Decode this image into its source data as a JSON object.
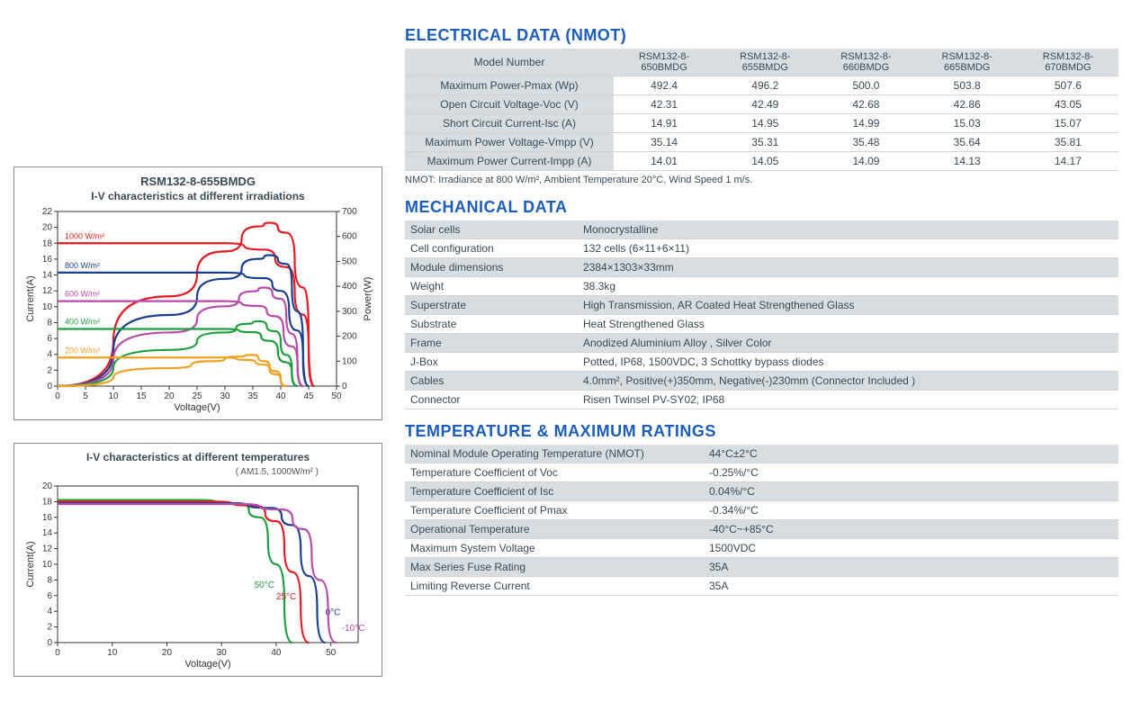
{
  "chart1": {
    "title": "RSM132-8-655BMDG",
    "subtitle": "I-V characteristics at different irradiations",
    "xlabel": "Voltage(V)",
    "ylabel_left": "Current(A)",
    "ylabel_right": "Power(W)",
    "xlim": [
      0,
      50
    ],
    "xtick_step": 5,
    "ylim_left": [
      0,
      22
    ],
    "ytick_left_step": 2,
    "ylim_right": [
      0,
      700
    ],
    "ytick_right_step": 100,
    "line_width": 2.2,
    "series": [
      {
        "label": "1000 W/m²",
        "color": "#e31b23",
        "iv": [
          [
            0,
            18
          ],
          [
            30,
            18
          ],
          [
            37,
            17.2
          ],
          [
            41,
            15
          ],
          [
            44,
            9
          ],
          [
            46,
            0
          ]
        ],
        "pv": [
          [
            0,
            0
          ],
          [
            20,
            360
          ],
          [
            30,
            540
          ],
          [
            36,
            640
          ],
          [
            38,
            655
          ],
          [
            41,
            615
          ],
          [
            44,
            395
          ],
          [
            46,
            0
          ]
        ]
      },
      {
        "label": "800 W/m²",
        "color": "#1b3f8f",
        "iv": [
          [
            0,
            14.3
          ],
          [
            30,
            14.3
          ],
          [
            37,
            13.6
          ],
          [
            40,
            12
          ],
          [
            43,
            7
          ],
          [
            45,
            0
          ]
        ],
        "pv": [
          [
            0,
            0
          ],
          [
            20,
            285
          ],
          [
            30,
            430
          ],
          [
            36,
            510
          ],
          [
            38,
            525
          ],
          [
            41,
            490
          ],
          [
            43,
            300
          ],
          [
            45,
            0
          ]
        ]
      },
      {
        "label": "600 W/m²",
        "color": "#b84aa8",
        "iv": [
          [
            0,
            10.7
          ],
          [
            30,
            10.7
          ],
          [
            36,
            10.1
          ],
          [
            39,
            8.8
          ],
          [
            42,
            5
          ],
          [
            44,
            0
          ]
        ],
        "pv": [
          [
            0,
            0
          ],
          [
            20,
            215
          ],
          [
            30,
            320
          ],
          [
            35,
            380
          ],
          [
            37,
            395
          ],
          [
            40,
            350
          ],
          [
            42,
            210
          ],
          [
            44,
            0
          ]
        ]
      },
      {
        "label": "400 W/m²",
        "color": "#1f9e3f",
        "iv": [
          [
            0,
            7.2
          ],
          [
            30,
            7.2
          ],
          [
            35,
            6.8
          ],
          [
            38,
            5.7
          ],
          [
            41,
            3
          ],
          [
            43,
            0
          ]
        ],
        "pv": [
          [
            0,
            0
          ],
          [
            20,
            145
          ],
          [
            30,
            215
          ],
          [
            34,
            250
          ],
          [
            36,
            260
          ],
          [
            39,
            220
          ],
          [
            41,
            125
          ],
          [
            43,
            0
          ]
        ]
      },
      {
        "label": "200 W/m²",
        "color": "#f0a11f",
        "iv": [
          [
            0,
            3.6
          ],
          [
            30,
            3.6
          ],
          [
            34,
            3.3
          ],
          [
            37,
            2.7
          ],
          [
            39,
            1.5
          ],
          [
            41,
            0
          ]
        ],
        "pv": [
          [
            0,
            0
          ],
          [
            20,
            72
          ],
          [
            28,
            100
          ],
          [
            32,
            118
          ],
          [
            35,
            125
          ],
          [
            37,
            100
          ],
          [
            39,
            60
          ],
          [
            41,
            0
          ]
        ]
      }
    ]
  },
  "chart2": {
    "title": "I-V characteristics at different temperatures",
    "note": "( AM1.5,  1000W/m² )",
    "xlabel": "Voltage(V)",
    "ylabel": "Current(A)",
    "xlim": [
      0,
      55
    ],
    "xtick_step": 10,
    "ylim": [
      0,
      20
    ],
    "ytick_step": 2,
    "line_width": 2.2,
    "series": [
      {
        "label": "50°C",
        "color": "#1f9e3f",
        "pts": [
          [
            0,
            18.2
          ],
          [
            25,
            18.2
          ],
          [
            33,
            17.8
          ],
          [
            37,
            16
          ],
          [
            40,
            10
          ],
          [
            43,
            0
          ]
        ]
      },
      {
        "label": "25°C",
        "color": "#e31b23",
        "pts": [
          [
            0,
            18.0
          ],
          [
            28,
            18.0
          ],
          [
            36,
            17.5
          ],
          [
            40,
            15.5
          ],
          [
            43,
            9
          ],
          [
            46,
            0
          ]
        ]
      },
      {
        "label": "0°C",
        "color": "#1b3f8f",
        "pts": [
          [
            0,
            17.8
          ],
          [
            31,
            17.8
          ],
          [
            39,
            17.2
          ],
          [
            43,
            15
          ],
          [
            46,
            8.5
          ],
          [
            49,
            0
          ]
        ]
      },
      {
        "label": "-10°C",
        "color": "#b84aa8",
        "pts": [
          [
            0,
            17.7
          ],
          [
            33,
            17.7
          ],
          [
            41,
            17
          ],
          [
            45,
            14.5
          ],
          [
            48,
            8
          ],
          [
            51,
            0
          ]
        ]
      }
    ]
  },
  "electrical": {
    "heading": "ELECTRICAL DATA (NMOT)",
    "columns": [
      "Model Number",
      "RSM132-8-650BMDG",
      "RSM132-8-655BMDG",
      "RSM132-8-660BMDG",
      "RSM132-8-665BMDG",
      "RSM132-8-670BMDG"
    ],
    "rows": [
      [
        "Maximum Power-Pmax (Wp)",
        "492.4",
        "496.2",
        "500.0",
        "503.8",
        "507.6"
      ],
      [
        "Open Circuit Voltage-Voc (V)",
        "42.31",
        "42.49",
        "42.68",
        "42.86",
        "43.05"
      ],
      [
        "Short Circuit Current-Isc (A)",
        "14.91",
        "14.95",
        "14.99",
        "15.03",
        "15.07"
      ],
      [
        "Maximum Power Voltage-Vmpp (V)",
        "35.14",
        "35.31",
        "35.48",
        "35.64",
        "35.81"
      ],
      [
        "Maximum Power Current-Impp (A)",
        "14.01",
        "14.05",
        "14.09",
        "14.13",
        "14.17"
      ]
    ],
    "note": "NMOT: Irradiance at 800 W/m², Ambient Temperature 20°C, Wind Speed 1 m/s."
  },
  "mechanical": {
    "heading": "MECHANICAL DATA",
    "rows": [
      [
        "Solar cells",
        "Monocrystalline"
      ],
      [
        "Cell configuration",
        "132 cells (6×11+6×11)"
      ],
      [
        "Module dimensions",
        "2384×1303×33mm"
      ],
      [
        "Weight",
        "38.3kg"
      ],
      [
        "Superstrate",
        "High Transmission, AR Coated Heat Strengthened Glass"
      ],
      [
        "Substrate",
        "Heat Strengthened Glass"
      ],
      [
        "Frame",
        "Anodized Aluminium Alloy , Silver Color"
      ],
      [
        "J-Box",
        "Potted, IP68, 1500VDC, 3 Schottky bypass diodes"
      ],
      [
        "Cables",
        "4.0mm², Positive(+)350mm, Negative(-)230mm (Connector Included )"
      ],
      [
        "Connector",
        "Risen Twinsel PV-SY02, IP68"
      ]
    ]
  },
  "temperature": {
    "heading": "TEMPERATURE & MAXIMUM RATINGS",
    "rows": [
      [
        "Nominal Module Operating Temperature (NMOT)",
        "44°C±2°C"
      ],
      [
        "Temperature Coefficient of Voc",
        "-0.25%/°C"
      ],
      [
        "Temperature Coefficient of Isc",
        "0.04%/°C"
      ],
      [
        "Temperature Coefficient of Pmax",
        "-0.34%/°C"
      ],
      [
        "Operational Temperature",
        "-40°C~+85°C"
      ],
      [
        "Maximum System Voltage",
        "1500VDC"
      ],
      [
        "Max Series Fuse Rating",
        "35A"
      ],
      [
        "Limiting Reverse Current",
        "35A"
      ]
    ]
  }
}
